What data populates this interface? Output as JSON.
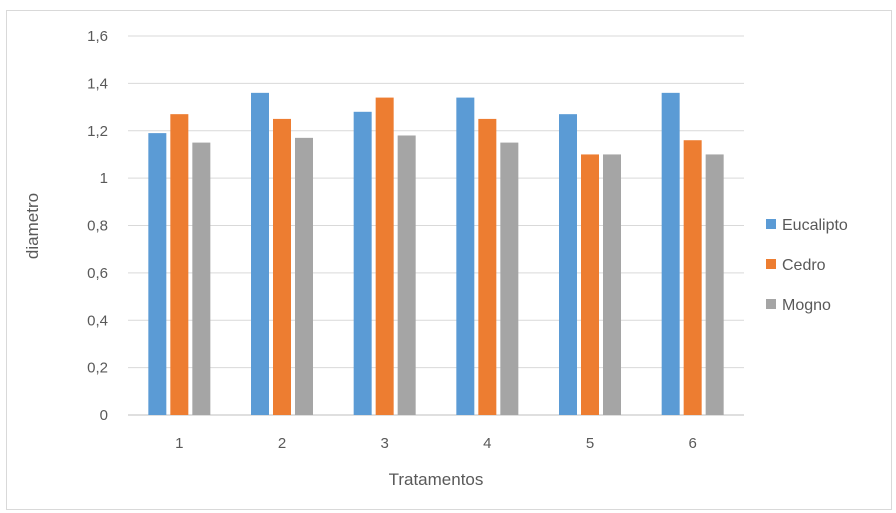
{
  "chart_data": {
    "type": "bar",
    "title": "",
    "xlabel": "Tratamentos",
    "ylabel": "diametro",
    "categories": [
      "1",
      "2",
      "3",
      "4",
      "5",
      "6"
    ],
    "series": [
      {
        "name": "Eucalipto",
        "color": "#5b9bd5",
        "values": [
          1.19,
          1.36,
          1.28,
          1.34,
          1.27,
          1.36
        ]
      },
      {
        "name": "Cedro",
        "color": "#ed7d31",
        "values": [
          1.27,
          1.25,
          1.34,
          1.25,
          1.1,
          1.16
        ]
      },
      {
        "name": "Mogno",
        "color": "#a5a5a5",
        "values": [
          1.15,
          1.17,
          1.18,
          1.15,
          1.1,
          1.1
        ]
      }
    ],
    "ylim": [
      0,
      1.6
    ],
    "yticks": [
      "0",
      "0,2",
      "0,4",
      "0,6",
      "0,8",
      "1",
      "1,2",
      "1,4",
      "1,6"
    ],
    "grid": true,
    "legend_position": "right"
  }
}
